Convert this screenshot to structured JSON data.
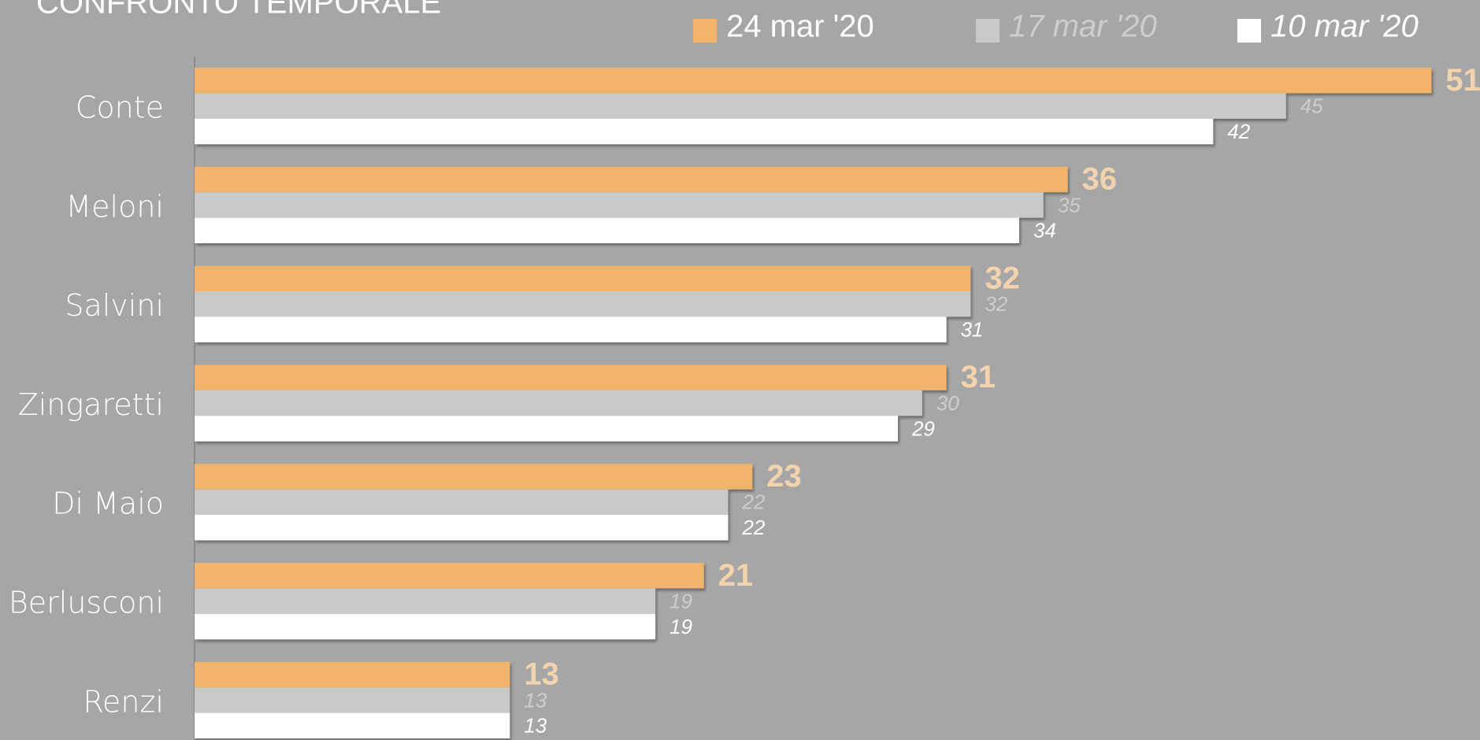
{
  "chart_data": {
    "type": "hbar",
    "title": "CONFRONTO TEMPORALE",
    "categories": [
      "Conte",
      "Meloni",
      "Salvini",
      "Zingaretti",
      "Di Maio",
      "Berlusconi",
      "Renzi"
    ],
    "series": [
      {
        "name": "24 mar '20",
        "color": "#f2b36b",
        "values": [
          51,
          36,
          32,
          31,
          23,
          21,
          13
        ]
      },
      {
        "name": "17 mar '20",
        "color": "#c9c9c9",
        "values": [
          45,
          35,
          32,
          30,
          22,
          19,
          13
        ]
      },
      {
        "name": "10 mar '20",
        "color": "#ffffff",
        "values": [
          42,
          34,
          31,
          29,
          22,
          19,
          13
        ]
      }
    ],
    "xlim": [
      0,
      53
    ]
  }
}
